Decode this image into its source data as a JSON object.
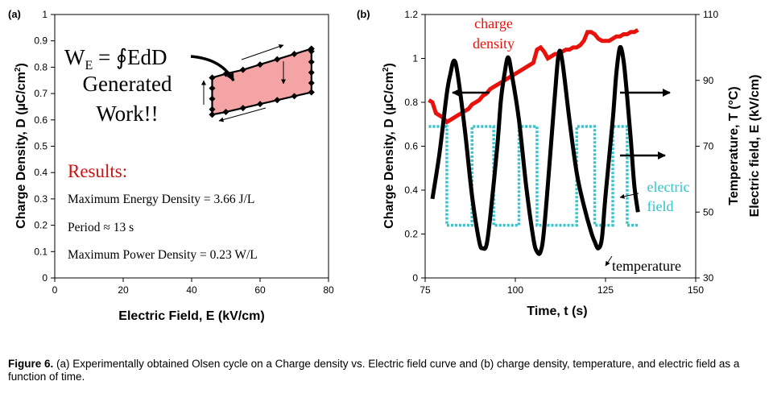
{
  "caption": {
    "label": "Figure 6.",
    "text": "(a) Experimentally obtained Olsen cycle on a Charge density vs. Electric field curve and (b) charge density, temperature, and electric field as a function of time."
  },
  "colors": {
    "charge": "#e8120c",
    "temperature": "#000000",
    "field": "#33c4cc",
    "fill": "#f4a4a4",
    "results": "#cc1111"
  },
  "chart_data": [
    {
      "type": "scatter",
      "panel_label": "(a)",
      "xlabel": "Electric Field, E (kV/cm)",
      "ylabel_main": "Charge Density, D (µC/cm",
      "ylabel_sup": "2",
      "ylabel_end": ")",
      "xlim": [
        0,
        80
      ],
      "ylim": [
        0,
        1
      ],
      "xticks": [
        "0",
        "20",
        "40",
        "60",
        "80"
      ],
      "yticks": [
        "0",
        "0.1",
        "0.2",
        "0.3",
        "0.4",
        "0.5",
        "0.6",
        "0.7",
        "0.8",
        "0.9",
        "1"
      ],
      "cycle": {
        "lower": [
          [
            46,
            0.62
          ],
          [
            50,
            0.63
          ],
          [
            55,
            0.645
          ],
          [
            60,
            0.66
          ],
          [
            65,
            0.675
          ],
          [
            70,
            0.69
          ],
          [
            75,
            0.705
          ]
        ],
        "right": [
          [
            75,
            0.705
          ],
          [
            75,
            0.74
          ],
          [
            75,
            0.78
          ],
          [
            75,
            0.82
          ],
          [
            75,
            0.86
          ],
          [
            75,
            0.87
          ]
        ],
        "upper": [
          [
            75,
            0.87
          ],
          [
            70,
            0.85
          ],
          [
            65,
            0.83
          ],
          [
            60,
            0.81
          ],
          [
            55,
            0.79
          ],
          [
            50,
            0.775
          ],
          [
            46,
            0.76
          ]
        ],
        "left": [
          [
            46,
            0.76
          ],
          [
            46,
            0.72
          ],
          [
            46,
            0.68
          ],
          [
            46,
            0.64
          ],
          [
            46,
            0.62
          ]
        ]
      },
      "annotation": {
        "line1": "W",
        "line1_sub": "E",
        "line1_rest": " = ∮EdD",
        "line2": "Generated",
        "line3": "Work!!"
      },
      "results": {
        "title": "Results:",
        "lines": [
          "Maximum Energy Density = 3.66 J/L",
          "Period ≈ 13 s",
          "Maximum Power Density = 0.23 W/L"
        ]
      }
    },
    {
      "type": "line",
      "panel_label": "(b)",
      "xlabel": "Time, t (s)",
      "ylabel_left_main": "Charge Density, D (µC/cm",
      "ylabel_left_sup": "2",
      "ylabel_left_end": ")",
      "ylabel_right1": "Temperature, T (°C)",
      "ylabel_right2": "Electric field, E (kV/cm)",
      "xlim": [
        75,
        150
      ],
      "ylim_left": [
        0,
        1.2
      ],
      "ylim_right": [
        30,
        110
      ],
      "xticks": [
        "75",
        "100",
        "125",
        "150"
      ],
      "yticks_left": [
        "0",
        "0.2",
        "0.4",
        "0.6",
        "0.8",
        "1",
        "1.2"
      ],
      "yticks_right": [
        "30",
        "50",
        "70",
        "90",
        "110"
      ],
      "series": [
        {
          "name": "charge density",
          "axis": "left",
          "points": [
            [
              76,
              0.81
            ],
            [
              77,
              0.8
            ],
            [
              78,
              0.75
            ],
            [
              79,
              0.74
            ],
            [
              80,
              0.73
            ],
            [
              81,
              0.71
            ],
            [
              82,
              0.72
            ],
            [
              83,
              0.73
            ],
            [
              84,
              0.74
            ],
            [
              85,
              0.75
            ],
            [
              86,
              0.76
            ],
            [
              87,
              0.77
            ],
            [
              88,
              0.79
            ],
            [
              89,
              0.8
            ],
            [
              90,
              0.81
            ],
            [
              91,
              0.83
            ],
            [
              92,
              0.84
            ],
            [
              93,
              0.86
            ],
            [
              94,
              0.87
            ],
            [
              95,
              0.88
            ],
            [
              96,
              0.89
            ],
            [
              97,
              0.9
            ],
            [
              98,
              0.91
            ],
            [
              99,
              0.92
            ],
            [
              100,
              0.93
            ],
            [
              101,
              0.94
            ],
            [
              102,
              0.95
            ],
            [
              103,
              0.96
            ],
            [
              104,
              0.97
            ],
            [
              105,
              0.98
            ],
            [
              106,
              1.04
            ],
            [
              107,
              1.05
            ],
            [
              108,
              1.03
            ],
            [
              109,
              1.0
            ],
            [
              110,
              1.01
            ],
            [
              111,
              1.02
            ],
            [
              112,
              1.02
            ],
            [
              113,
              1.03
            ],
            [
              114,
              1.04
            ],
            [
              115,
              1.04
            ],
            [
              116,
              1.05
            ],
            [
              117,
              1.05
            ],
            [
              118,
              1.06
            ],
            [
              119,
              1.08
            ],
            [
              120,
              1.12
            ],
            [
              121,
              1.12
            ],
            [
              122,
              1.11
            ],
            [
              123,
              1.09
            ],
            [
              124,
              1.08
            ],
            [
              125,
              1.08
            ],
            [
              126,
              1.08
            ],
            [
              127,
              1.09
            ],
            [
              128,
              1.1
            ],
            [
              129,
              1.1
            ],
            [
              130,
              1.11
            ],
            [
              131,
              1.11
            ],
            [
              132,
              1.12
            ],
            [
              133,
              1.12
            ],
            [
              134,
              1.13
            ]
          ]
        },
        {
          "name": "temperature",
          "axis": "right",
          "points": [
            [
              77,
              54
            ],
            [
              79,
              68
            ],
            [
              81,
              86
            ],
            [
              82,
              92
            ],
            [
              83,
              96
            ],
            [
              84,
              92
            ],
            [
              86,
              75
            ],
            [
              88,
              55
            ],
            [
              90,
              41
            ],
            [
              91,
              39
            ],
            [
              92,
              40
            ],
            [
              93,
              48
            ],
            [
              95,
              70
            ],
            [
              96,
              84
            ],
            [
              97,
              92
            ],
            [
              98,
              97
            ],
            [
              99,
              92
            ],
            [
              101,
              78
            ],
            [
              103,
              58
            ],
            [
              105,
              42
            ],
            [
              106,
              38
            ],
            [
              107,
              38
            ],
            [
              108,
              45
            ],
            [
              110,
              72
            ],
            [
              111,
              86
            ],
            [
              112,
              98
            ],
            [
              113,
              96
            ],
            [
              115,
              78
            ],
            [
              117,
              62
            ],
            [
              119,
              52
            ],
            [
              121,
              44
            ],
            [
              122,
              41
            ],
            [
              123,
              39
            ],
            [
              124,
              42
            ],
            [
              125,
              55
            ],
            [
              127,
              78
            ],
            [
              128,
              92
            ],
            [
              129,
              100
            ],
            [
              130,
              96
            ],
            [
              131,
              85
            ],
            [
              132,
              72
            ],
            [
              133,
              58
            ],
            [
              134,
              50
            ]
          ]
        },
        {
          "name": "electric field",
          "axis": "right",
          "points": [
            [
              76,
              76
            ],
            [
              81,
              76
            ],
            [
              81,
              46
            ],
            [
              88,
              46
            ],
            [
              88,
              76
            ],
            [
              94,
              76
            ],
            [
              94,
              46
            ],
            [
              101,
              46
            ],
            [
              101,
              76
            ],
            [
              106,
              76
            ],
            [
              106,
              46
            ],
            [
              117,
              46
            ],
            [
              117,
              76
            ],
            [
              122,
              76
            ],
            [
              122,
              46
            ],
            [
              127,
              46
            ],
            [
              127,
              76
            ],
            [
              131,
              76
            ],
            [
              131,
              46
            ],
            [
              134,
              46
            ]
          ]
        }
      ],
      "annotations": {
        "charge_label_1": "charge",
        "charge_label_2": "density",
        "field_label_1": "electric",
        "field_label_2": "field",
        "temp_label": "temperature"
      }
    }
  ]
}
